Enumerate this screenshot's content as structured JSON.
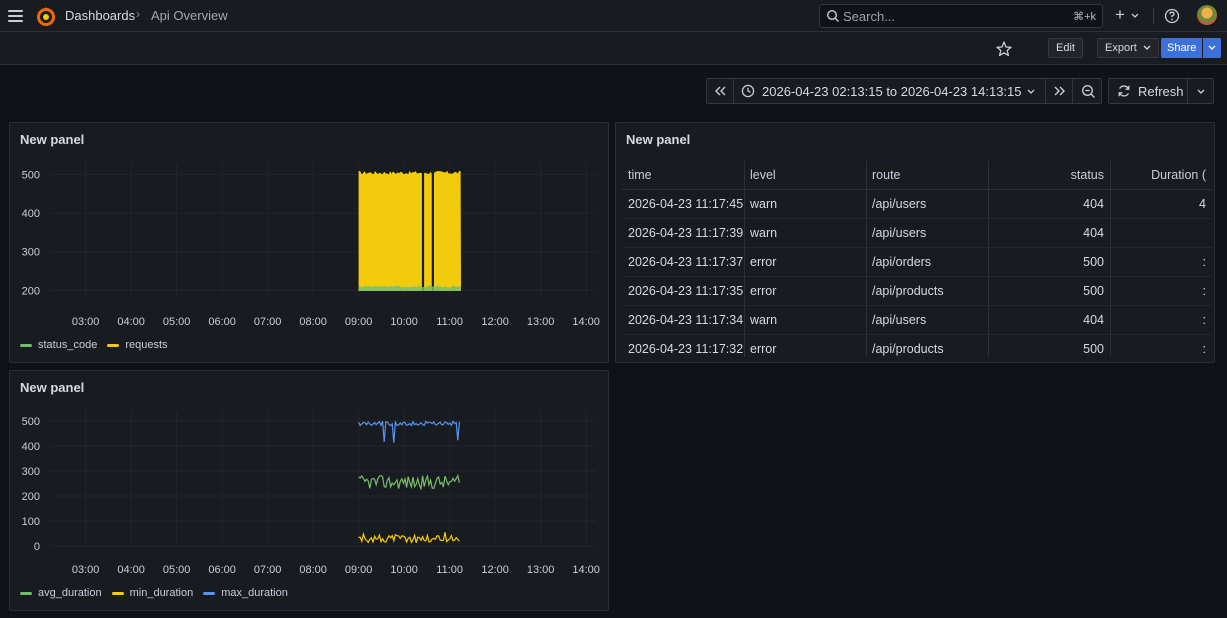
{
  "header": {
    "breadcrumb_root": "Dashboards",
    "breadcrumb_separator": "›",
    "breadcrumb_page": "Api Overview",
    "search_placeholder": "Search...",
    "search_shortcut": "⌘+k",
    "plus_label": "+"
  },
  "toolbar": {
    "edit_label": "Edit",
    "export_label": "Export",
    "share_label": "Share"
  },
  "timepicker": {
    "range_label": "2026-04-23 02:13:15 to 2026-04-23 14:13:15",
    "refresh_label": "Refresh"
  },
  "colors": {
    "green": "#73bf69",
    "yellow": "#f2cc0c",
    "blue": "#5794f2",
    "primary": "#3d71d9"
  },
  "panels": [
    {
      "title": "New panel",
      "chart_data": {
        "type": "area",
        "x_ticks": [
          "03:00",
          "04:00",
          "05:00",
          "06:00",
          "07:00",
          "08:00",
          "09:00",
          "10:00",
          "11:00",
          "12:00",
          "13:00",
          "14:00"
        ],
        "y_ticks": [
          200,
          300,
          400,
          500
        ],
        "ylim": [
          180,
          530
        ],
        "series": [
          {
            "name": "status_code",
            "color": "#73bf69",
            "range": [
              "09:00",
              "11:15"
            ],
            "level": 210
          },
          {
            "name": "requests",
            "color": "#f2cc0c",
            "range": [
              "09:00",
              "11:15"
            ],
            "level": 505
          }
        ],
        "gaps": [
          "10:25",
          "10:38"
        ]
      }
    },
    {
      "title": "New panel",
      "columns": [
        "time",
        "level",
        "route",
        "status",
        "Duration ("
      ],
      "rows": [
        {
          "time": "2026-04-23 11:17:45",
          "level": "warn",
          "route": "/api/users",
          "status": "404",
          "duration": "4"
        },
        {
          "time": "2026-04-23 11:17:39",
          "level": "warn",
          "route": "/api/users",
          "status": "404",
          "duration": ""
        },
        {
          "time": "2026-04-23 11:17:37",
          "level": "error",
          "route": "/api/orders",
          "status": "500",
          "duration": ":"
        },
        {
          "time": "2026-04-23 11:17:35",
          "level": "error",
          "route": "/api/products",
          "status": "500",
          "duration": ":"
        },
        {
          "time": "2026-04-23 11:17:34",
          "level": "warn",
          "route": "/api/users",
          "status": "404",
          "duration": ":"
        },
        {
          "time": "2026-04-23 11:17:32",
          "level": "error",
          "route": "/api/products",
          "status": "500",
          "duration": ":"
        }
      ]
    },
    {
      "title": "New panel",
      "chart_data": {
        "type": "line",
        "x_ticks": [
          "03:00",
          "04:00",
          "05:00",
          "06:00",
          "07:00",
          "08:00",
          "09:00",
          "10:00",
          "11:00",
          "12:00",
          "13:00",
          "14:00"
        ],
        "y_ticks": [
          0,
          100,
          200,
          300,
          400,
          500
        ],
        "ylim": [
          0,
          540
        ],
        "series": [
          {
            "name": "avg_duration",
            "color": "#73bf69",
            "range": [
              "09:00",
              "11:15"
            ],
            "level": 255
          },
          {
            "name": "min_duration",
            "color": "#f2cc0c",
            "range": [
              "09:00",
              "11:15"
            ],
            "level": 30
          },
          {
            "name": "max_duration",
            "color": "#5794f2",
            "range": [
              "09:00",
              "11:15"
            ],
            "level": 490
          }
        ]
      }
    }
  ]
}
